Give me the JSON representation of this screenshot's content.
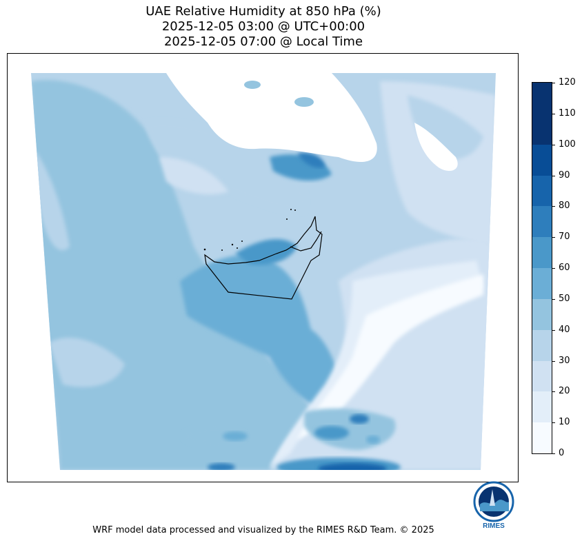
{
  "title": {
    "line1": "UAE Relative Humidity at 850 hPa (%)",
    "line2": "2025-12-05 03:00 @ UTC+00:00",
    "line3": "2025-12-05 07:00 @ Local Time"
  },
  "colorbar": {
    "ticks": [
      "0",
      "10",
      "20",
      "30",
      "40",
      "50",
      "60",
      "70",
      "80",
      "90",
      "100",
      "110",
      "120"
    ],
    "colors": [
      "#f7fbff",
      "#e3eef9",
      "#d0e1f2",
      "#b7d4ea",
      "#94c4df",
      "#6baed6",
      "#4a98c9",
      "#2e7ebc",
      "#1764ab",
      "#084d96",
      "#083370",
      "#083370"
    ]
  },
  "logo": {
    "text": "RIMES"
  },
  "footer": "WRF model data processed and visualized by the RIMES R&D Team. © 2025"
}
